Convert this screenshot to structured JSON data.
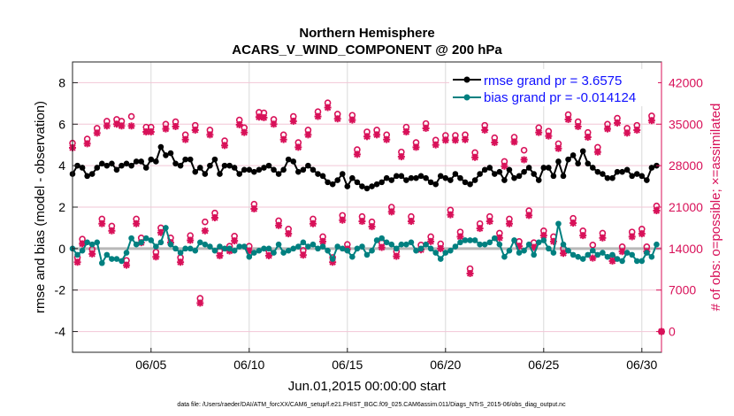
{
  "chart_data": {
    "type": "line",
    "title": "Northern Hemisphere",
    "subtitle": "ACARS_V_WIND_COMPONENT @ 200 hPa",
    "xlabel": "Jun.01,2015 00:00:00 start",
    "ylabel": "rmse and bias (model - observation)",
    "y2label": "# of obs: o=possible; ×=assimilated",
    "footer": "data file: /Users/raeder/DAI/ATM_forcXX/CAM6_setup/f.e21.FHIST_BGC.f09_025.CAM6assim.011/Diags_NTrS_2015-06/obs_diag_output.nc",
    "xlim_day": [
      1,
      31
    ],
    "x_start_day": 1,
    "x_step_day": 0.25,
    "x_ticks": [
      {
        "day": 5,
        "label": "06/05"
      },
      {
        "day": 10,
        "label": "06/10"
      },
      {
        "day": 15,
        "label": "06/15"
      },
      {
        "day": 20,
        "label": "06/20"
      },
      {
        "day": 25,
        "label": "06/25"
      },
      {
        "day": 30,
        "label": "06/30"
      }
    ],
    "ylim": [
      -5,
      9
    ],
    "y_ticks": [
      "-4",
      "-2",
      "0",
      "2",
      "4",
      "6",
      "8"
    ],
    "y2lim": [
      -3500,
      45500
    ],
    "y2_ticks": [
      "0",
      "7000",
      "14000",
      "21000",
      "28000",
      "35000",
      "42000"
    ],
    "grid": true,
    "legend_position": "top-right",
    "colors": {
      "rmse": "#000000",
      "bias": "#008080",
      "obs": "#d81159",
      "zero": "#b8b8b8",
      "hgrid": "#f2c6d6",
      "vgrid": "#d8d8d8"
    },
    "series": [
      {
        "name": "rmse grand pr = 3.6575",
        "key": "rmse",
        "values": [
          3.6,
          4.0,
          3.9,
          3.5,
          3.6,
          3.9,
          4.1,
          4.0,
          4.1,
          3.8,
          4.0,
          4.1,
          4.0,
          4.2,
          4.2,
          3.9,
          4.3,
          4.2,
          4.9,
          4.5,
          4.6,
          4.1,
          4.0,
          4.3,
          4.3,
          3.7,
          3.9,
          3.6,
          4.0,
          4.3,
          3.6,
          4.0,
          4.0,
          3.9,
          3.6,
          3.8,
          3.8,
          3.7,
          3.8,
          3.9,
          4.0,
          3.8,
          3.6,
          3.8,
          4.3,
          4.2,
          3.7,
          3.8,
          4.0,
          3.8,
          3.6,
          3.5,
          3.2,
          3.1,
          3.3,
          3.6,
          3.0,
          3.4,
          3.2,
          3.0,
          2.9,
          3.0,
          3.1,
          3.2,
          3.4,
          3.3,
          3.5,
          3.5,
          3.3,
          3.4,
          3.4,
          3.5,
          3.4,
          3.2,
          3.1,
          3.5,
          3.4,
          3.3,
          3.6,
          3.4,
          3.2,
          3.1,
          3.3,
          3.6,
          3.8,
          3.9,
          3.6,
          3.7,
          3.3,
          3.8,
          3.4,
          3.5,
          3.7,
          3.9,
          3.6,
          3.3,
          3.9,
          3.9,
          3.5,
          4.2,
          3.5,
          4.3,
          4.5,
          4.1,
          4.7,
          4.1,
          3.9,
          3.7,
          3.6,
          3.4,
          3.4,
          3.7,
          3.7,
          3.8,
          3.5,
          3.6,
          3.5,
          3.3,
          3.9,
          4.0
        ]
      },
      {
        "name": "bias grand pr = -0.014124",
        "key": "bias",
        "values": [
          0.0,
          -0.3,
          -0.1,
          0.3,
          0.2,
          0.3,
          -0.7,
          -0.3,
          -0.5,
          -0.5,
          -0.6,
          -0.2,
          0.5,
          0.2,
          0.3,
          0.5,
          0.4,
          0.1,
          0.3,
          1.0,
          0.2,
          0.0,
          -0.2,
          0.0,
          0.0,
          -0.1,
          0.3,
          0.2,
          0.1,
          -0.1,
          0.1,
          0.0,
          0.0,
          -0.1,
          0.1,
          0.1,
          -0.4,
          -0.2,
          -0.1,
          0.0,
          0.0,
          -0.2,
          0.2,
          -0.2,
          -0.1,
          0.0,
          0.1,
          0.3,
          0.1,
          0.2,
          0.0,
          0.1,
          -0.1,
          -0.5,
          0.1,
          0.0,
          -0.1,
          -0.4,
          0.0,
          0.1,
          -0.3,
          -0.1,
          0.4,
          0.5,
          0.3,
          0.2,
          0.0,
          0.2,
          0.2,
          0.3,
          -0.1,
          0.0,
          0.2,
          0.0,
          -0.2,
          -0.5,
          -0.2,
          -0.1,
          0.1,
          0.3,
          0.4,
          0.4,
          0.4,
          0.2,
          0.2,
          0.3,
          0.5,
          0.2,
          -0.4,
          -0.1,
          0.4,
          -0.2,
          -0.1,
          0.2,
          -0.3,
          0.3,
          0.4,
          0.0,
          -0.2,
          1.2,
          0.2,
          -0.1,
          -0.3,
          -0.4,
          -0.5,
          -0.3,
          -0.1,
          -0.3,
          -0.2,
          -0.4,
          -0.3,
          -0.5,
          -0.6,
          -0.2,
          -0.3,
          -0.6,
          -0.6,
          -0.2,
          -0.4,
          0.2
        ]
      },
      {
        "name": "obs possible",
        "key": "possible",
        "values": [
          31800,
          12500,
          15600,
          32500,
          13900,
          34300,
          19000,
          35500,
          17800,
          35800,
          35500,
          12000,
          36300,
          19000,
          15800,
          34500,
          34500,
          13400,
          17500,
          35000,
          15800,
          35400,
          12500,
          33200,
          16200,
          34800,
          5600,
          18500,
          34000,
          20000,
          13600,
          32200,
          14400,
          16100,
          35700,
          34400,
          14400,
          21500,
          37000,
          36900,
          13600,
          35800,
          18700,
          33200,
          17300,
          36300,
          31900,
          13700,
          34000,
          19000,
          37100,
          16000,
          38600,
          12500,
          36700,
          19600,
          14700,
          36500,
          30700,
          19400,
          33700,
          18500,
          34000,
          15000,
          33200,
          21000,
          13500,
          30300,
          34500,
          19400,
          31900,
          14600,
          35100,
          16000,
          32300,
          14800,
          33100,
          20500,
          33100,
          16800,
          33200,
          10600,
          30200,
          18200,
          34800,
          19400,
          32700,
          16600,
          28700,
          19000,
          32800,
          15200,
          30600,
          20400,
          15000,
          34400,
          17000,
          33800,
          16000,
          31700,
          14000,
          36600,
          19100,
          35400,
          17000,
          33600,
          14600,
          31100,
          16600,
          35000,
          12700,
          36000,
          14300,
          34300,
          16800,
          34800,
          17300,
          14300,
          36400,
          21200,
          0
        ]
      },
      {
        "name": "obs assimilated",
        "key": "assimilated",
        "values": [
          31000,
          11700,
          14800,
          31700,
          13100,
          33500,
          18200,
          34700,
          17000,
          35000,
          34700,
          11200,
          34700,
          18200,
          15000,
          33700,
          33700,
          12600,
          16700,
          34200,
          15000,
          34600,
          11700,
          32400,
          15400,
          34000,
          4800,
          17000,
          33200,
          19200,
          12800,
          31400,
          13600,
          15300,
          34900,
          33600,
          13600,
          20700,
          36200,
          36100,
          12800,
          35000,
          17900,
          32400,
          16500,
          35500,
          31100,
          12900,
          33200,
          18200,
          36300,
          15200,
          37800,
          11700,
          35900,
          18800,
          13900,
          35700,
          29900,
          18600,
          32900,
          17700,
          33200,
          14200,
          32400,
          20200,
          12700,
          29500,
          33700,
          18600,
          31100,
          13800,
          34300,
          15200,
          31500,
          14000,
          32300,
          19700,
          32300,
          16000,
          32400,
          9800,
          29400,
          17400,
          34000,
          18600,
          31900,
          15800,
          27900,
          18200,
          32000,
          14400,
          29000,
          19600,
          14200,
          33600,
          16200,
          33000,
          15200,
          30900,
          13200,
          35800,
          18300,
          34600,
          16200,
          32800,
          12400,
          30300,
          15800,
          34200,
          11900,
          35200,
          13500,
          33500,
          16000,
          34000,
          16500,
          13500,
          35600,
          20400,
          0
        ]
      }
    ]
  }
}
